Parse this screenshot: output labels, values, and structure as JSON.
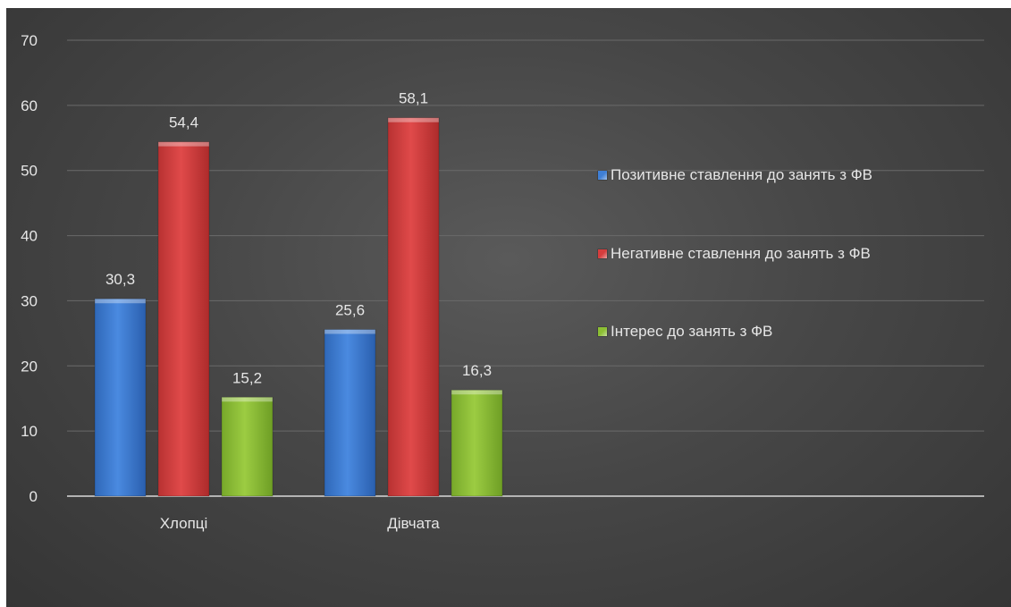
{
  "chart_data": {
    "type": "bar",
    "categories": [
      "Хлопці",
      "Дівчата"
    ],
    "series": [
      {
        "name": "Позитивне ставлення до занять з ФВ",
        "values": [
          30.3,
          25.6
        ],
        "color": "#3f7fd6",
        "labels": [
          "30,3",
          "25,6"
        ]
      },
      {
        "name": "Негативне ставлення до занять з ФВ",
        "values": [
          54.4,
          58.1
        ],
        "color": "#d63d3d",
        "labels": [
          "54,4",
          "58,1"
        ]
      },
      {
        "name": "Інтерес до занять з ФВ",
        "values": [
          15.2,
          16.3
        ],
        "color": "#8cbf33",
        "labels": [
          "15,2",
          "16,3"
        ]
      }
    ],
    "yticks": [
      "0",
      "10",
      "20",
      "30",
      "40",
      "50",
      "60",
      "70"
    ],
    "ylim": [
      0,
      70
    ],
    "grid": true,
    "legend_position": "right",
    "title": "",
    "xlabel": "",
    "ylabel": ""
  }
}
